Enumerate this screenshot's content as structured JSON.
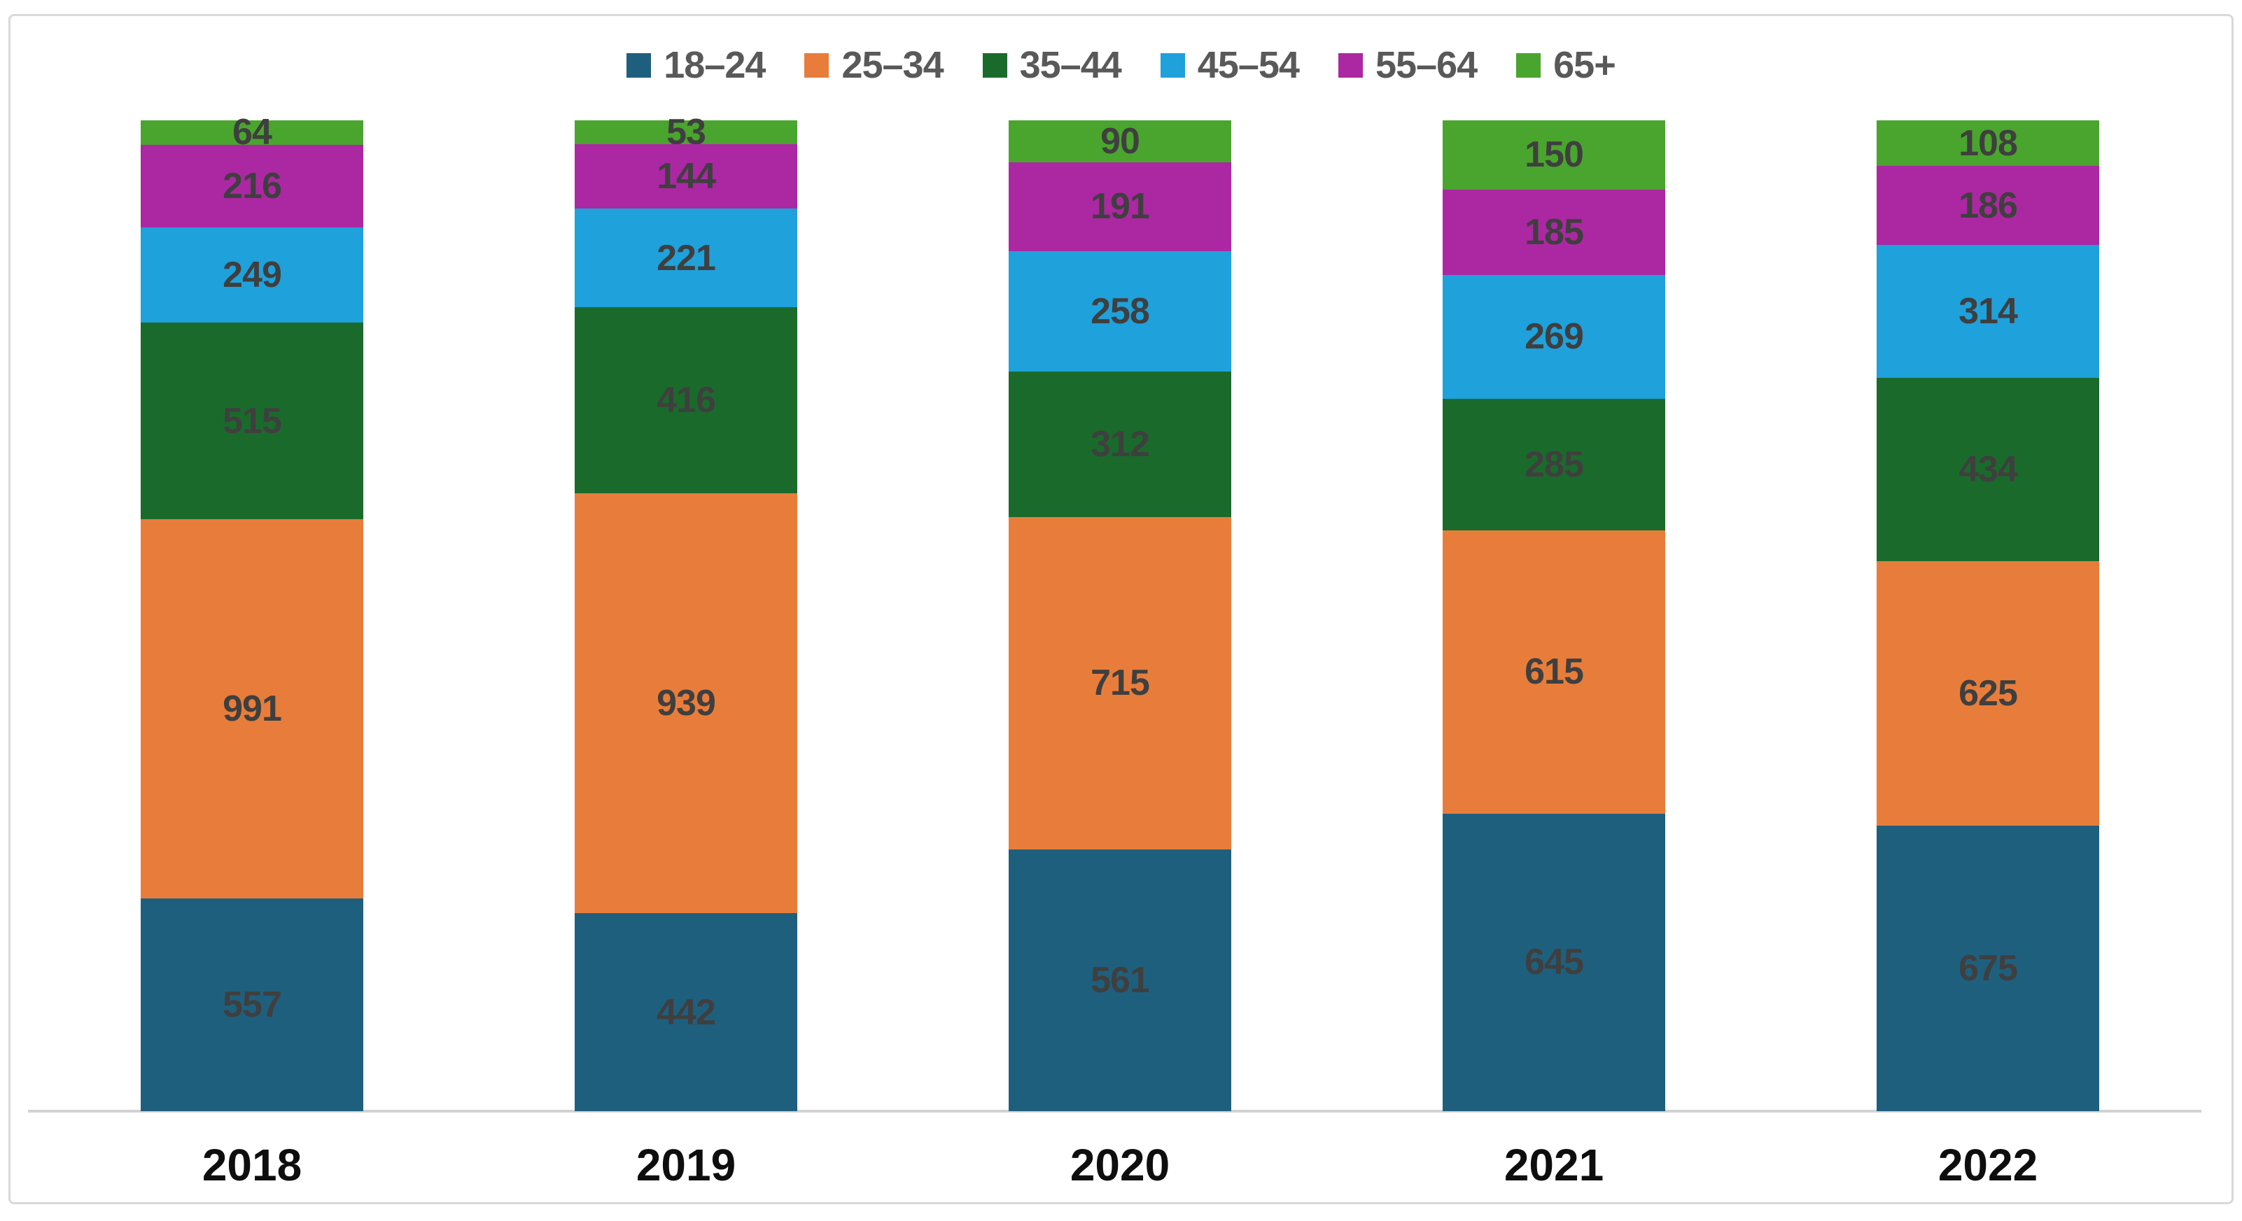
{
  "chart_data": {
    "type": "bar",
    "variant": "stacked-column",
    "bars_equal_height": true,
    "title": "",
    "xlabel": "",
    "ylabel": "",
    "grid": false,
    "legend_position": "top-center",
    "categories": [
      "2018",
      "2019",
      "2020",
      "2021",
      "2022"
    ],
    "series": [
      {
        "name": "18–24",
        "color": "#1f5f7e",
        "values": [
          557,
          442,
          561,
          645,
          675
        ]
      },
      {
        "name": "25–34",
        "color": "#e87d3b",
        "values": [
          991,
          939,
          715,
          615,
          625
        ]
      },
      {
        "name": "35–44",
        "color": "#1a6b2b",
        "values": [
          515,
          416,
          312,
          285,
          434
        ]
      },
      {
        "name": "45–54",
        "color": "#1fa1db",
        "values": [
          249,
          221,
          258,
          269,
          314
        ]
      },
      {
        "name": "55–64",
        "color": "#ab28a2",
        "values": [
          216,
          144,
          191,
          185,
          186
        ]
      },
      {
        "name": "65+",
        "color": "#4aa52e",
        "values": [
          64,
          53,
          90,
          150,
          108
        ]
      }
    ],
    "value_label_color": "#3f3f3f",
    "legend_text_color": "#595959",
    "axis_line_color": "#d2d2d2",
    "stack_order_bottom_to_top": [
      "18–24",
      "25–34",
      "35–44",
      "45–54",
      "55–64",
      "65+"
    ]
  }
}
